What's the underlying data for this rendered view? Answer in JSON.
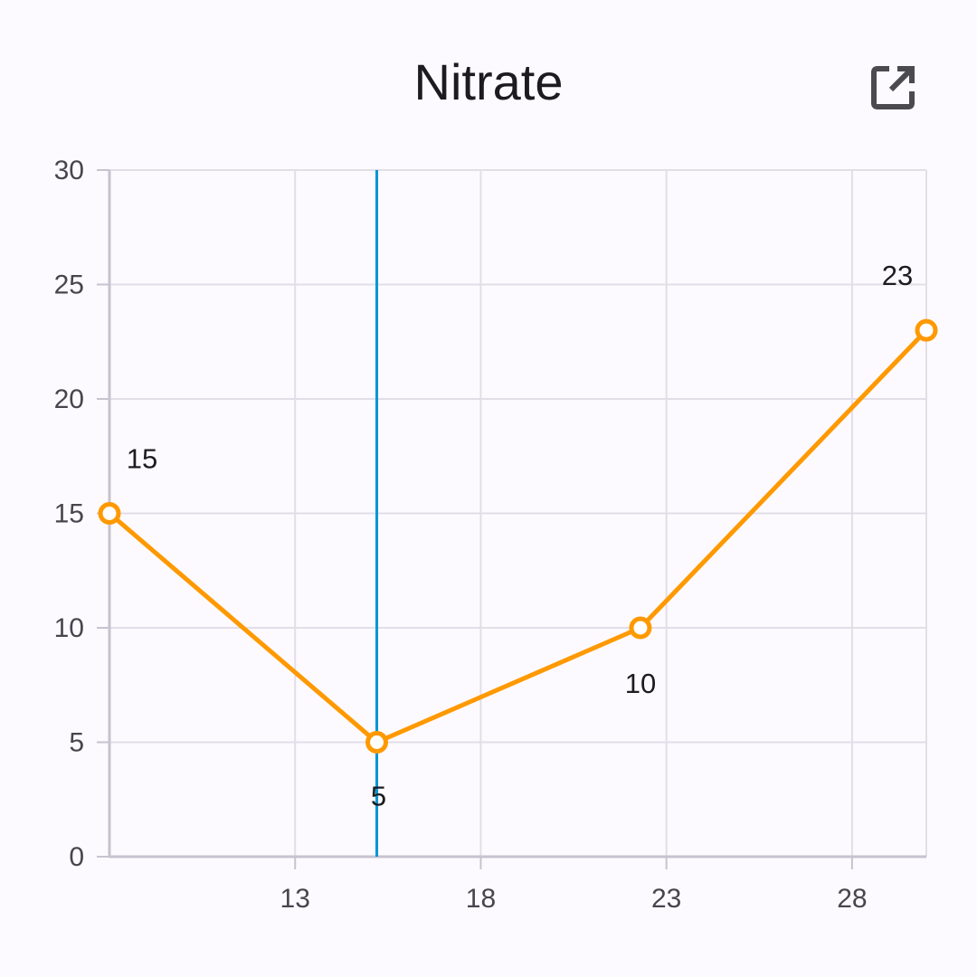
{
  "chart_data": {
    "type": "line",
    "title": "Nitrate",
    "x": [
      8,
      15.2,
      22.3,
      30
    ],
    "y": [
      15,
      5,
      10,
      23
    ],
    "data_labels": [
      "15",
      "5",
      "10",
      "23"
    ],
    "xlim": [
      8,
      30
    ],
    "ylim": [
      0,
      30
    ],
    "x_ticks": [
      13,
      18,
      23,
      28
    ],
    "y_ticks": [
      0,
      5,
      10,
      15,
      20,
      25,
      30
    ],
    "cursor_x": 15.2,
    "grid": true,
    "colors": {
      "series": "#ff9900",
      "cursor": "#0096d6",
      "grid": "#e2dee8",
      "axis": "#c7c3cf"
    }
  },
  "header": {
    "action_icon": "open-in-new-icon"
  }
}
